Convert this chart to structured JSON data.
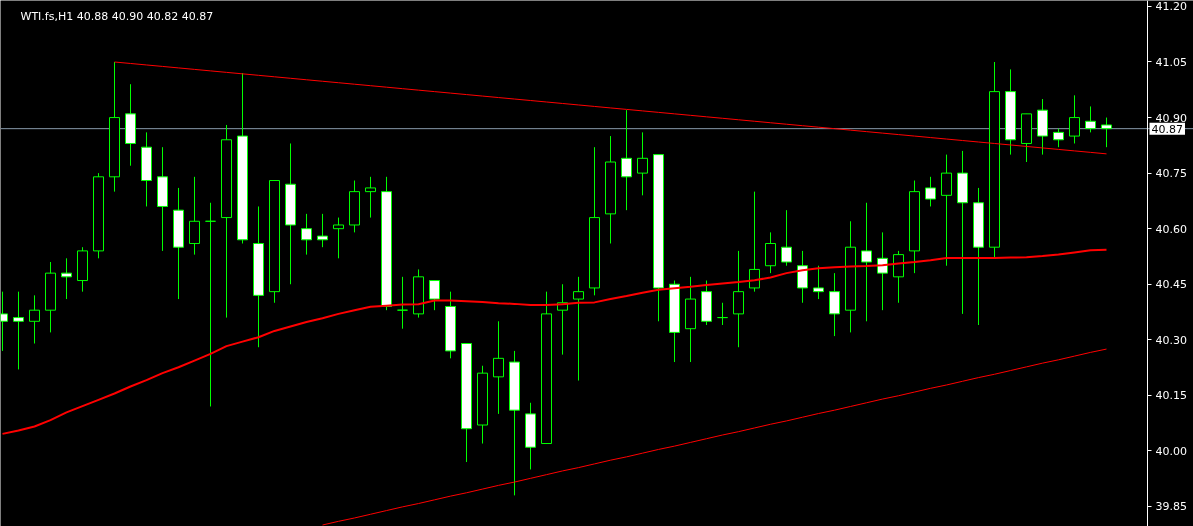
{
  "chart_data": {
    "type": "candlestick",
    "title": "WTI.fs,H1  40.88 40.90 40.82 40.87",
    "categories": [
      null,
      null,
      null,
      null,
      null,
      null,
      null,
      null,
      null,
      null,
      null,
      null,
      null,
      null,
      null,
      null,
      null,
      null,
      null,
      null,
      null,
      null,
      null,
      null,
      null,
      null,
      null,
      null,
      null,
      null,
      null,
      null,
      null,
      null,
      null,
      null,
      null,
      null,
      null,
      null,
      null,
      null,
      null,
      null,
      null,
      null,
      null,
      null,
      null,
      null,
      null,
      null,
      null,
      null,
      null,
      null,
      null,
      null,
      null,
      null,
      null,
      null,
      null,
      null,
      null,
      null,
      null,
      null,
      null,
      null
    ],
    "ohlc": [
      [
        40.37,
        40.43,
        40.27,
        40.35
      ],
      [
        40.36,
        40.43,
        40.22,
        40.35
      ],
      [
        40.35,
        40.42,
        40.29,
        40.38
      ],
      [
        40.38,
        40.51,
        40.32,
        40.48
      ],
      [
        40.48,
        40.52,
        40.41,
        40.47
      ],
      [
        40.46,
        40.55,
        40.43,
        40.54
      ],
      [
        40.54,
        40.75,
        40.52,
        40.74
      ],
      [
        40.74,
        41.05,
        40.7,
        40.9
      ],
      [
        40.91,
        40.99,
        40.77,
        40.83
      ],
      [
        40.82,
        40.86,
        40.66,
        40.73
      ],
      [
        40.74,
        40.82,
        40.54,
        40.66
      ],
      [
        40.65,
        40.71,
        40.41,
        40.55
      ],
      [
        40.56,
        40.74,
        40.53,
        40.62
      ],
      [
        40.62,
        40.67,
        40.12,
        40.62
      ],
      [
        40.63,
        40.88,
        40.36,
        40.84
      ],
      [
        40.85,
        41.02,
        40.56,
        40.57
      ],
      [
        40.56,
        40.66,
        40.28,
        40.42
      ],
      [
        40.43,
        40.73,
        40.4,
        40.73
      ],
      [
        40.72,
        40.83,
        40.45,
        40.61
      ],
      [
        40.6,
        40.64,
        40.53,
        40.57
      ],
      [
        40.58,
        40.64,
        40.55,
        40.57
      ],
      [
        40.6,
        40.63,
        40.52,
        40.61
      ],
      [
        40.61,
        40.73,
        40.59,
        40.7
      ],
      [
        40.7,
        40.74,
        40.63,
        40.71
      ],
      [
        40.7,
        40.74,
        40.38,
        40.39
      ],
      [
        40.38,
        40.47,
        40.33,
        40.38
      ],
      [
        40.37,
        40.49,
        40.36,
        40.47
      ],
      [
        40.46,
        40.46,
        40.38,
        40.41
      ],
      [
        40.39,
        40.43,
        40.25,
        40.27
      ],
      [
        40.29,
        40.29,
        39.97,
        40.06
      ],
      [
        40.07,
        40.23,
        40.02,
        40.21
      ],
      [
        40.2,
        40.35,
        40.1,
        40.25
      ],
      [
        40.24,
        40.27,
        39.88,
        40.11
      ],
      [
        40.1,
        40.13,
        39.95,
        40.01
      ],
      [
        40.02,
        40.43,
        40.02,
        40.37
      ],
      [
        40.38,
        40.45,
        40.26,
        40.4
      ],
      [
        40.41,
        40.47,
        40.19,
        40.43
      ],
      [
        40.44,
        40.82,
        40.42,
        40.63
      ],
      [
        40.64,
        40.85,
        40.56,
        40.78
      ],
      [
        40.79,
        40.92,
        40.65,
        40.74
      ],
      [
        40.75,
        40.86,
        40.69,
        40.79
      ],
      [
        40.8,
        40.8,
        40.35,
        40.44
      ],
      [
        40.45,
        40.46,
        40.24,
        40.32
      ],
      [
        40.33,
        40.47,
        40.24,
        40.41
      ],
      [
        40.43,
        40.46,
        40.34,
        40.35
      ],
      [
        40.36,
        40.4,
        40.34,
        40.36
      ],
      [
        40.37,
        40.54,
        40.28,
        40.43
      ],
      [
        40.44,
        40.7,
        40.43,
        40.49
      ],
      [
        40.5,
        40.59,
        40.48,
        40.56
      ],
      [
        40.55,
        40.65,
        40.5,
        40.51
      ],
      [
        40.5,
        40.54,
        40.4,
        40.44
      ],
      [
        40.44,
        40.5,
        40.41,
        40.43
      ],
      [
        40.43,
        40.48,
        40.31,
        40.37
      ],
      [
        40.38,
        40.62,
        40.32,
        40.55
      ],
      [
        40.54,
        40.67,
        40.35,
        40.51
      ],
      [
        40.52,
        40.59,
        40.38,
        40.48
      ],
      [
        40.47,
        40.54,
        40.4,
        40.53
      ],
      [
        40.54,
        40.73,
        40.48,
        40.7
      ],
      [
        40.71,
        40.74,
        40.66,
        40.68
      ],
      [
        40.69,
        40.8,
        40.5,
        40.75
      ],
      [
        40.75,
        40.81,
        40.37,
        40.67
      ],
      [
        40.67,
        40.71,
        40.34,
        40.55
      ],
      [
        40.55,
        41.05,
        40.52,
        40.97
      ],
      [
        40.97,
        41.03,
        40.8,
        40.84
      ],
      [
        40.83,
        40.91,
        40.78,
        40.91
      ],
      [
        40.92,
        40.95,
        40.8,
        40.85
      ],
      [
        40.86,
        40.87,
        40.82,
        40.84
      ],
      [
        40.85,
        40.96,
        40.83,
        40.9
      ],
      [
        40.89,
        40.93,
        40.86,
        40.87
      ],
      [
        40.88,
        40.9,
        40.82,
        40.87
      ]
    ],
    "color": "#00ff00",
    "colors": [
      "#ffffff",
      "#ffffff",
      "#000000",
      "#000000",
      "#ffffff",
      "#000000",
      "#000000",
      "#000000",
      "#ffffff",
      "#ffffff",
      "#ffffff",
      "#ffffff",
      "#000000",
      "#00ff00",
      "#000000",
      "#ffffff",
      "#ffffff",
      "#000000",
      "#ffffff",
      "#ffffff",
      "#ffffff",
      "#000000",
      "#000000",
      "#000000",
      "#ffffff",
      "#00ff00",
      "#000000",
      "#ffffff",
      "#ffffff",
      "#ffffff",
      "#000000",
      "#000000",
      "#ffffff",
      "#ffffff",
      "#000000",
      "#000000",
      "#000000",
      "#000000",
      "#000000",
      "#ffffff",
      "#000000",
      "#ffffff",
      "#ffffff",
      "#000000",
      "#ffffff",
      "#00ff00",
      "#000000",
      "#000000",
      "#000000",
      "#ffffff",
      "#ffffff",
      "#ffffff",
      "#ffffff",
      "#000000",
      "#ffffff",
      "#ffffff",
      "#000000",
      "#000000",
      "#ffffff",
      "#000000",
      "#ffffff",
      "#ffffff",
      "#000000",
      "#ffffff",
      "#000000",
      "#ffffff",
      "#ffffff",
      "#000000",
      "#ffffff",
      "#ffffff"
    ],
    "series": [
      {
        "type": "line",
        "color": "#ff0000",
        "values": [
          40.046,
          40.055,
          40.066,
          40.083,
          40.104,
          40.121,
          40.138,
          40.155,
          40.174,
          40.191,
          40.21,
          40.226,
          40.244,
          40.262,
          40.283,
          40.295,
          40.307,
          40.324,
          40.336,
          40.348,
          40.358,
          40.37,
          40.38,
          40.389,
          40.392,
          40.395,
          40.396,
          40.406,
          40.406,
          40.404,
          40.402,
          40.399,
          40.397,
          40.394,
          40.394,
          40.396,
          40.4,
          40.401,
          40.41,
          40.418,
          40.427,
          40.435,
          40.439,
          40.443,
          40.448,
          40.452,
          40.456,
          40.461,
          40.468,
          40.48,
          40.488,
          40.493,
          40.496,
          40.498,
          40.499,
          40.501,
          40.506,
          40.51,
          40.515,
          40.521,
          40.521,
          40.521,
          40.521,
          40.522,
          40.523,
          40.526,
          40.53,
          40.536,
          40.542,
          40.543
        ]
      },
      {
        "type": "line",
        "color": "#ff0000",
        "values": [
          null,
          null,
          null,
          null,
          null,
          null,
          null,
          41.05,
          41.046,
          41.042,
          41.038,
          41.034,
          41.03,
          41.026,
          41.022,
          41.018,
          41.014,
          41.01,
          41.006,
          41.002,
          40.998,
          40.994,
          40.99,
          40.986,
          40.982,
          40.978,
          40.974,
          40.97,
          40.966,
          40.962,
          40.958,
          40.954,
          40.95,
          40.946,
          40.942,
          40.938,
          40.934,
          40.93,
          40.926,
          40.922,
          40.918,
          40.914,
          40.91,
          40.906,
          40.902,
          40.898,
          40.894,
          40.89,
          40.886,
          40.882,
          40.878,
          40.874,
          40.87,
          40.866,
          40.862,
          40.858,
          40.854,
          40.85,
          40.846,
          40.842,
          40.838,
          40.834,
          40.83,
          40.826,
          40.822,
          40.818,
          40.814,
          40.81,
          40.806,
          40.802
        ]
      },
      {
        "type": "line",
        "color": "#ff0000",
        "values": [
          null,
          null,
          null,
          null,
          null,
          null,
          null,
          null,
          null,
          null,
          null,
          null,
          null,
          null,
          null,
          null,
          null,
          null,
          null,
          null,
          39.8,
          39.81,
          39.819,
          39.829,
          39.839,
          39.849,
          39.858,
          39.868,
          39.878,
          39.887,
          39.897,
          39.907,
          39.916,
          39.926,
          39.936,
          39.946,
          39.955,
          39.965,
          39.975,
          39.984,
          39.994,
          40.004,
          40.013,
          40.023,
          40.033,
          40.043,
          40.052,
          40.062,
          40.072,
          40.081,
          40.091,
          40.101,
          40.11,
          40.12,
          40.13,
          40.14,
          40.149,
          40.159,
          40.169,
          40.178,
          40.188,
          40.198,
          40.207,
          40.217,
          40.227,
          40.237,
          40.246,
          40.256,
          40.266,
          40.275
        ]
      }
    ],
    "ref_lines": [
      {
        "axis": "y",
        "value": 40.87,
        "label": "40.87",
        "color": "#8899aa"
      }
    ],
    "ylim": [
      39.796,
      41.216
    ],
    "yticks": [
      39.85,
      {
        "value": 40.0,
        "label": "40.00"
      },
      40.15,
      {
        "value": 40.3,
        "label": "40.30"
      },
      40.45,
      {
        "value": 40.6,
        "label": "40.60"
      },
      40.75,
      {
        "value": 40.9,
        "label": "40.90"
      },
      41.05,
      {
        "value": 41.2,
        "label": "41.20"
      }
    ],
    "tick_labels": "y"
  }
}
